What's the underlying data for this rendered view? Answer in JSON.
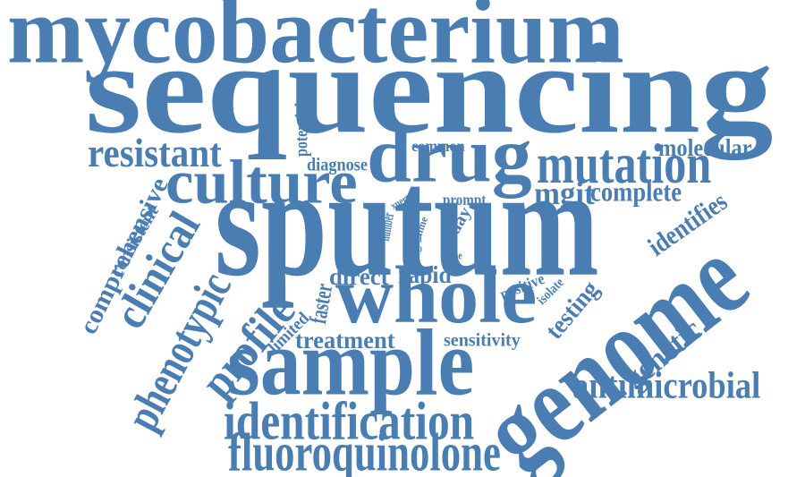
{
  "color": "#4a7eb3",
  "words": [
    "mycobacterium",
    "sequencing",
    "sputum",
    "genome",
    "sample",
    "whole",
    "drug",
    "culture",
    "mutation",
    "resistant",
    "clinical",
    "phenotypic",
    "profile",
    "identification",
    "fluoroquinolone",
    "antimicrobial",
    "mgit",
    "complete",
    "molecular",
    "identifies",
    "genetic",
    "testing",
    "comprehensive",
    "consistent",
    "potential",
    "diagnose",
    "common",
    "direct",
    "rapid",
    "faster",
    "treatment",
    "limited",
    "sensitivity",
    "positive",
    "isolate",
    "prompt",
    "number",
    "xpert",
    "test",
    "time",
    "full",
    "step",
    "day",
    "case"
  ]
}
